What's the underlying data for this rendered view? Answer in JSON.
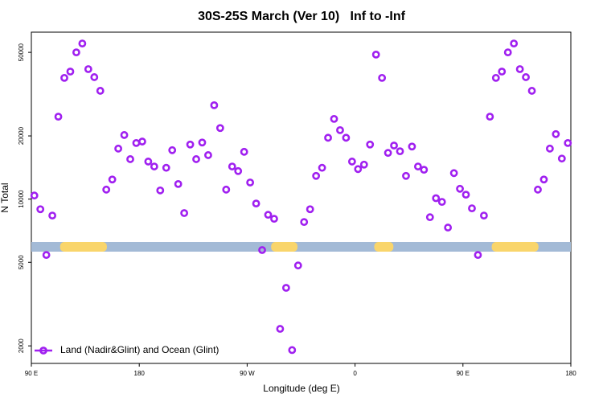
{
  "chart_data": {
    "type": "scatter",
    "title": "30S-25S March (Ver 10)   Inf to -Inf",
    "xlabel": "Longitude (deg E)",
    "ylabel": "N Total",
    "log_y": true,
    "legend": "bottom-left",
    "xlim": [
      90,
      540
    ],
    "ylim": [
      1650,
      62400
    ],
    "xticks": [
      {
        "value": 90,
        "label": "90 E"
      },
      180,
      {
        "value": 270,
        "label": "90 W"
      },
      {
        "value": 360,
        "label": "0"
      },
      {
        "value": 450,
        "label": "90 E"
      },
      {
        "value": 540,
        "label": "180"
      }
    ],
    "yticks": [
      2000,
      5000,
      10000,
      20000,
      50000
    ],
    "surface_strip": {
      "ocean_color": "#a3bad6",
      "land_color": "#f9d56b",
      "land": [
        [
          114,
          153
        ],
        [
          290,
          312
        ],
        [
          376,
          392
        ],
        [
          474,
          513
        ]
      ]
    },
    "x": [
      92.5,
      97.5,
      102.5,
      107.5,
      112.5,
      117.5,
      122.5,
      127.5,
      132.5,
      137.5,
      142.5,
      147.5,
      152.5,
      157.5,
      162.5,
      167.5,
      172.5,
      177.5,
      182.5,
      187.5,
      192.5,
      197.5,
      202.5,
      207.5,
      212.5,
      217.5,
      222.5,
      227.5,
      232.5,
      237.5,
      242.5,
      247.5,
      252.5,
      257.5,
      262.5,
      267.5,
      272.5,
      277.5,
      282.5,
      287.5,
      292.5,
      297.5,
      302.5,
      307.5,
      312.5,
      317.5,
      322.5,
      327.5,
      332.5,
      337.5,
      342.5,
      347.5,
      352.5,
      357.5,
      362.5,
      367.5,
      372.5,
      377.5,
      382.5,
      387.5,
      392.5,
      397.5,
      402.5,
      407.5,
      412.5,
      417.5,
      422.5,
      427.5,
      432.5,
      437.5,
      442.5,
      447.5,
      452.5,
      457.5,
      462.5,
      467.5,
      472.5,
      477.5,
      482.5,
      487.5,
      492.5,
      497.5,
      502.5,
      507.5,
      512.5,
      517.5,
      522.5,
      527.5,
      532.5,
      537.5
    ],
    "series": [
      {
        "name": "Land (Nadir&Glint) and Ocean (Glint)",
        "color": "#a020f0",
        "values": [
          10400,
          8950,
          5420,
          8350,
          24700,
          37800,
          40500,
          50000,
          55100,
          41600,
          38100,
          32800,
          11100,
          12400,
          17400,
          20200,
          15500,
          18500,
          18800,
          15100,
          14300,
          11000,
          14100,
          17100,
          11800,
          8580,
          18200,
          15500,
          18600,
          16200,
          28000,
          21800,
          11100,
          14300,
          13600,
          16800,
          12000,
          9530,
          5720,
          8420,
          8060,
          2410,
          3780,
          1910,
          4830,
          7780,
          8950,
          12900,
          14100,
          19600,
          24100,
          21300,
          19600,
          15100,
          13900,
          14600,
          18200,
          48800,
          37800,
          16600,
          18000,
          16900,
          12900,
          17800,
          14300,
          13800,
          8200,
          10100,
          9700,
          7320,
          13300,
          11200,
          10500,
          9040,
          5420,
          8350,
          24700,
          37800,
          40500,
          50000,
          55100,
          41600,
          38100,
          32800,
          11100,
          12400,
          17400,
          20400,
          15600,
          18500
        ]
      }
    ]
  }
}
